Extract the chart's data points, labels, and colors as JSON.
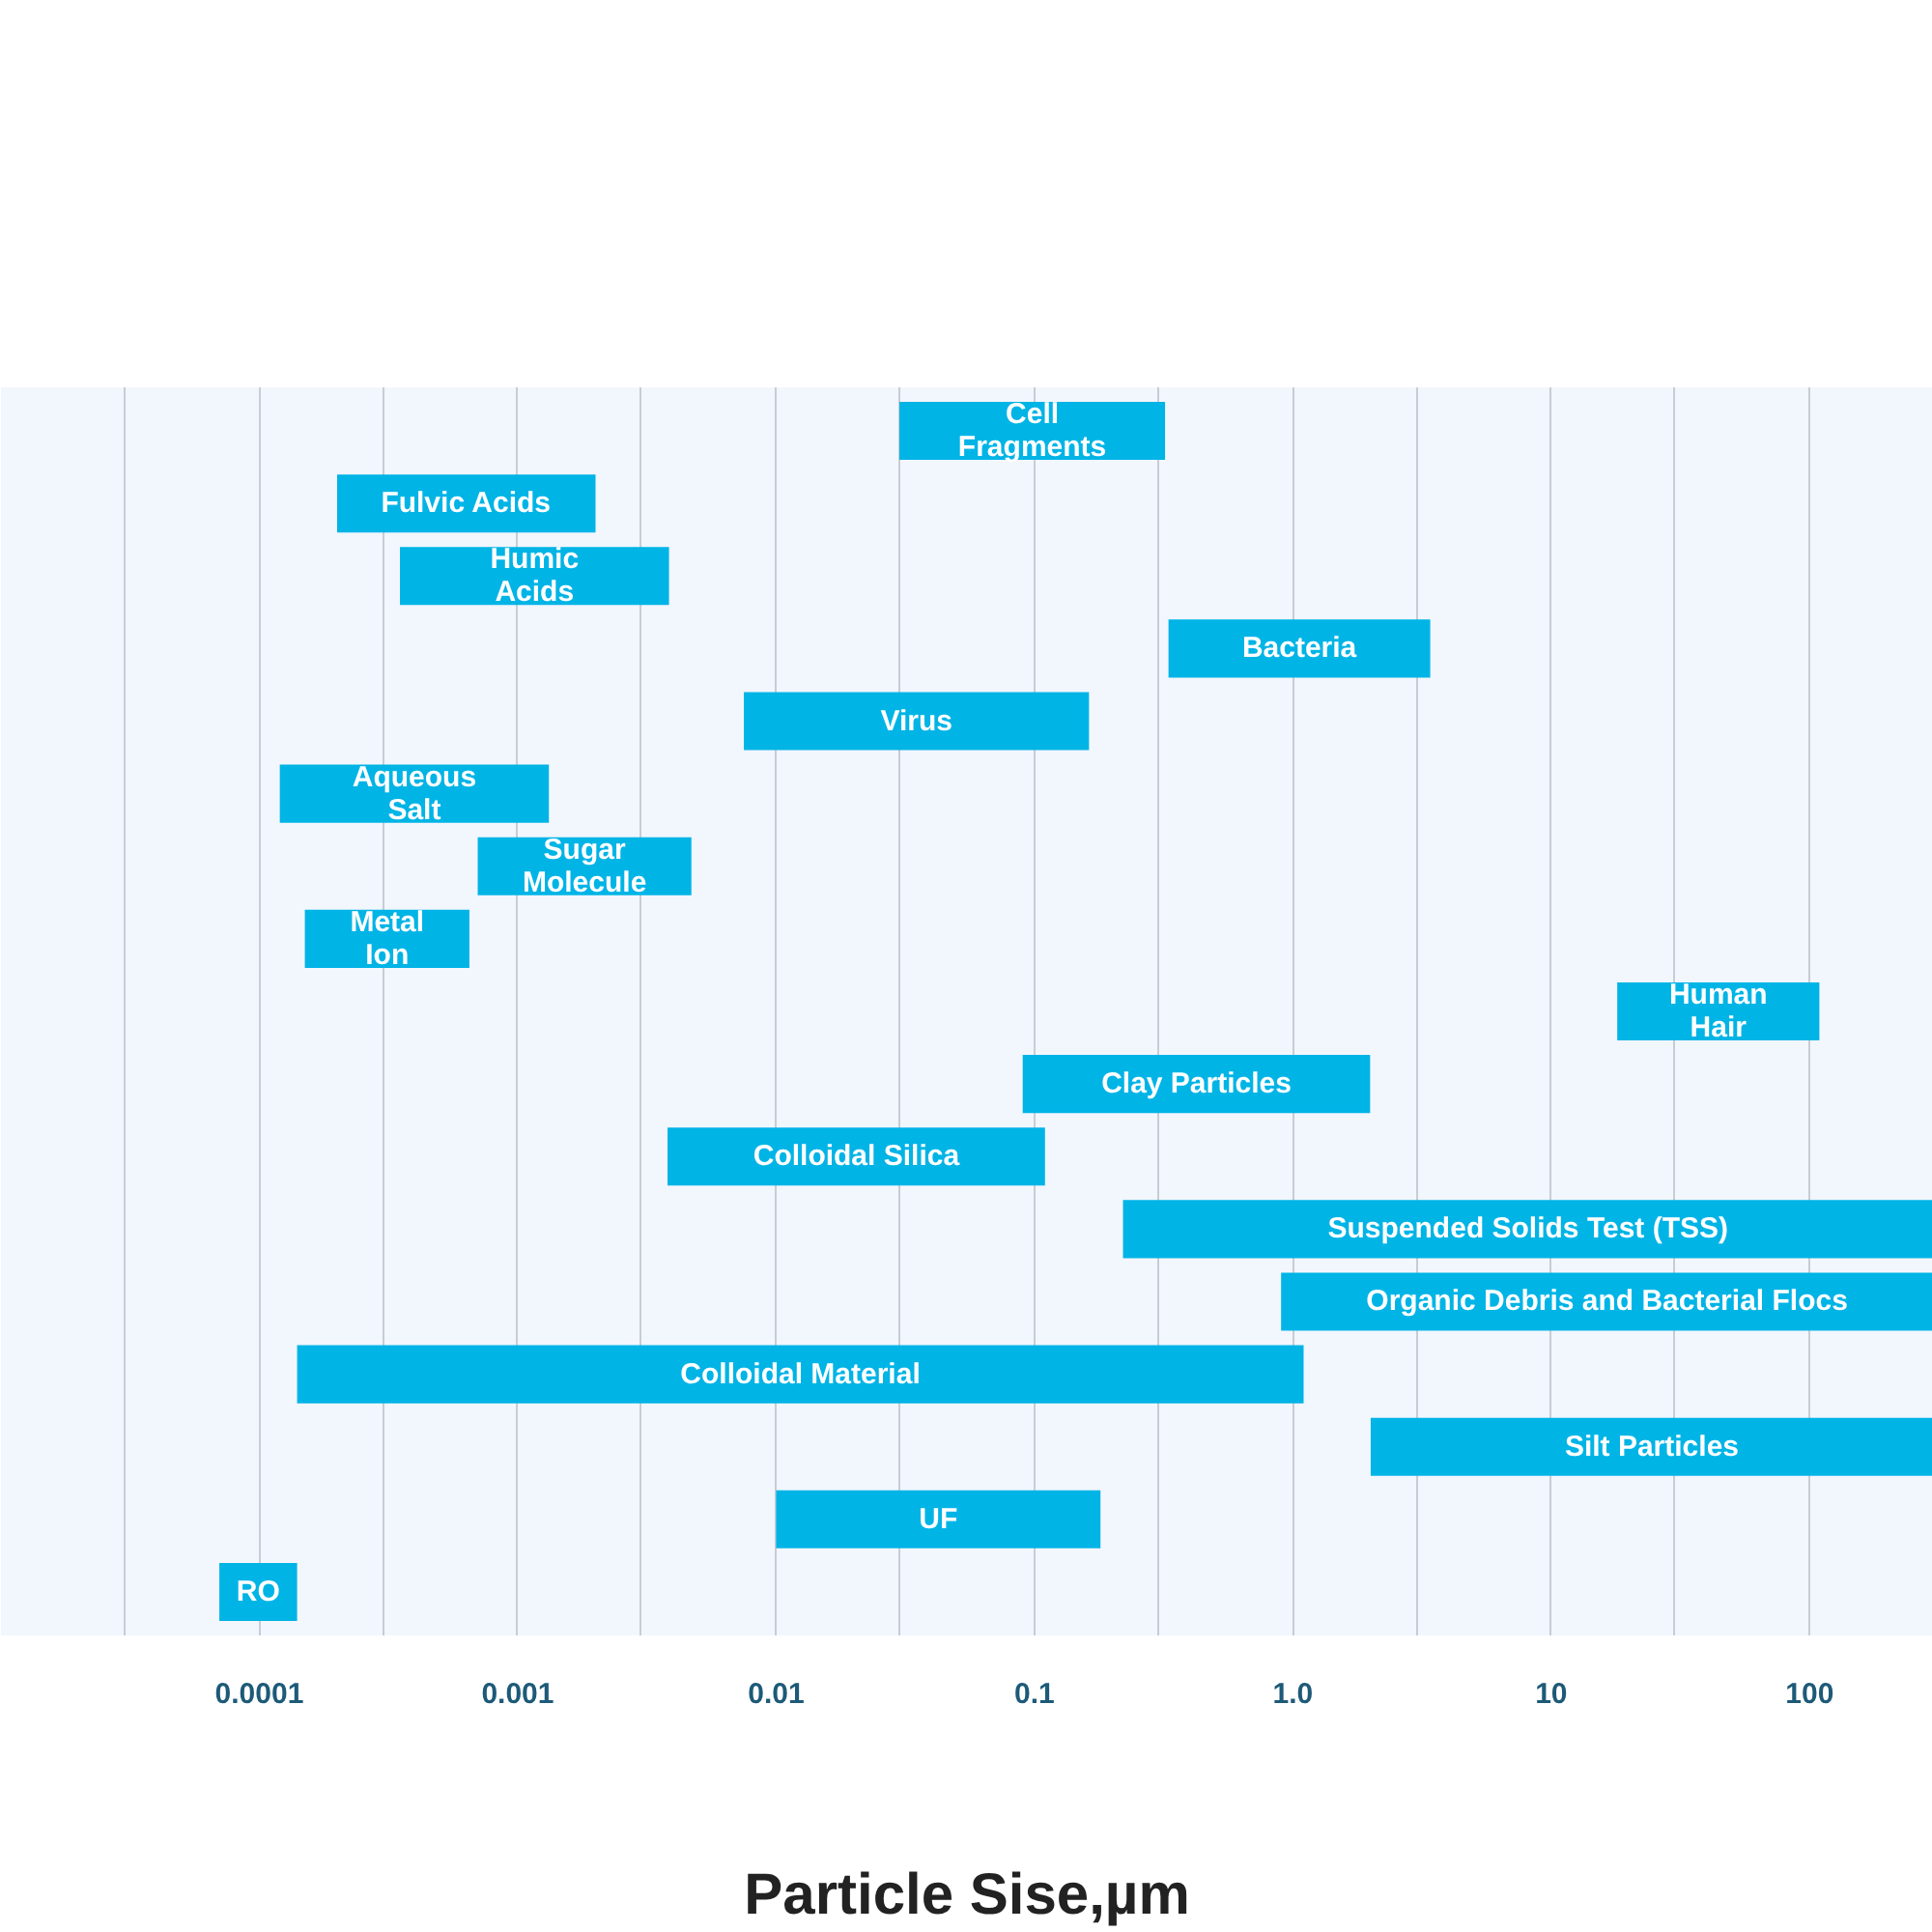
{
  "chart_data": {
    "type": "bar",
    "orientation": "horizontal",
    "log": "x",
    "grid": "x",
    "xlabel": "Particle Sise,µm",
    "categories": [
      "Cell\nFragments",
      "Fulvic Acids",
      "Humic\nAcids",
      "Bacteria",
      "Virus",
      "Aqueous\nSalt",
      "Sugar\nMolecule",
      "Metal\nIon",
      "Human\nHair",
      "Clay Particles",
      "Colloidal Silica",
      "Suspended Solids Test (TSS)",
      "Organic Debris and Bacterial Flocs",
      "Colloidal Material",
      "Silt Particles",
      "UF",
      "RO"
    ],
    "base": [
      0.03,
      0.0002,
      0.00035,
      0.33,
      0.0075,
      0.00012,
      0.0007,
      0.00015,
      18,
      0.09,
      0.0038,
      0.22,
      0.9,
      0.00014,
      2,
      0.01,
      7e-05
    ],
    "values": [
      0.29,
      0.0018,
      0.0035,
      3.07,
      0.155,
      0.0012,
      0.004,
      0.0005,
      91,
      1.9,
      0.106,
      299.78,
      299.1,
      1.1,
      298,
      0.17,
      7e-05
    ],
    "color": "#00b4e6",
    "xlim": [
      1e-05,
      300
    ],
    "xticks": [
      {
        "value": 3e-05,
        "label": null
      },
      {
        "value": 0.0001,
        "label": "0.0001"
      },
      {
        "value": 0.0003,
        "label": null
      },
      {
        "value": 0.001,
        "label": "0.001"
      },
      {
        "value": 0.003,
        "label": null
      },
      {
        "value": 0.01,
        "label": "0.01"
      },
      {
        "value": 0.03,
        "label": null
      },
      {
        "value": 0.1,
        "label": "0.1"
      },
      {
        "value": 0.3,
        "label": null
      },
      {
        "value": 1,
        "label": "1.0"
      },
      {
        "value": 3,
        "label": null
      },
      {
        "value": 10,
        "label": "10"
      },
      {
        "value": 30,
        "label": null
      },
      {
        "value": 100,
        "label": "100"
      }
    ]
  }
}
